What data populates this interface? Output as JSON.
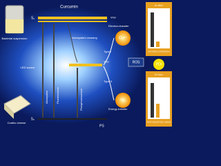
{
  "left": {
    "bacteria": "Bacterial suspension",
    "led": "LED source",
    "cheese": "Coalho cheese"
  },
  "diagram": {
    "title": "Curcumin",
    "s1": "S₁",
    "s0": "S₀",
    "singlet": "¹PS*",
    "triplet": "³PS*",
    "ps": "PS",
    "isc": "Intersystem crossing",
    "absorption": "Absorption",
    "fluorescence": "Fluorescence",
    "phosphorescence": "Phosphorescence",
    "electron": "Electron-transfer",
    "energy": "Energy-transfer",
    "type1": "Type I",
    "type2": "Type II"
  },
  "products": {
    "radical": "O₂•⁻",
    "singlet_oxygen": "¹O₂",
    "ros": "ROS",
    "pdi": "PDI"
  },
  "panels": {
    "top_title": "in vitro",
    "top_caption": "BACTERIAL SUSPENSION",
    "bottom_title": "in loco",
    "bottom_caption": "PHOTOSENSITIZED CHEESE"
  }
}
